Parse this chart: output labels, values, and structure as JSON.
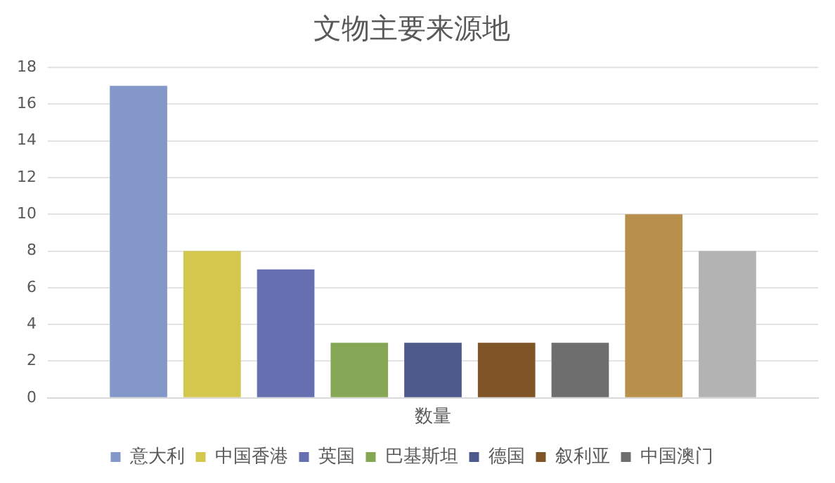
{
  "chart_data": {
    "type": "bar",
    "title": "文物主要来源地",
    "categories": [
      "数量"
    ],
    "ylim": [
      0,
      18
    ],
    "yticks": [
      0,
      2,
      4,
      6,
      8,
      10,
      12,
      14,
      16,
      18
    ],
    "grid": "y",
    "legend": "bottom",
    "series": [
      {
        "name": "意大利",
        "color": "#8497c9",
        "values": [
          17
        ]
      },
      {
        "name": "中国香港",
        "color": "#d4c74e",
        "values": [
          8
        ]
      },
      {
        "name": "英国",
        "color": "#6670b0",
        "values": [
          7
        ]
      },
      {
        "name": "巴基斯坦",
        "color": "#84a655",
        "values": [
          3
        ]
      },
      {
        "name": "德国",
        "color": "#4c5a8c",
        "values": [
          3
        ]
      },
      {
        "name": "叙利亚",
        "color": "#7f5427",
        "values": [
          3
        ]
      },
      {
        "name": "中国澳门",
        "color": "#6e6e6e",
        "values": [
          3
        ]
      },
      {
        "color": "#b88f4b",
        "values": [
          10
        ]
      },
      {
        "color": "#b3b3b3",
        "values": [
          8
        ]
      }
    ]
  }
}
